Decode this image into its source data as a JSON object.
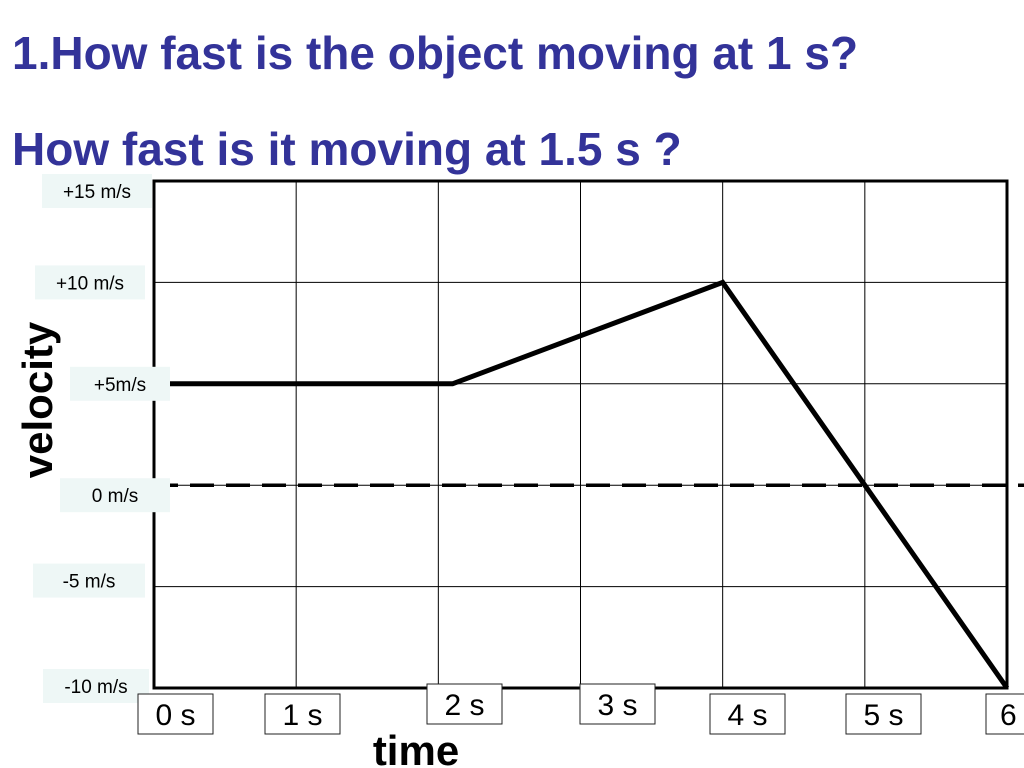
{
  "slide": {
    "question1": "1.How fast is the object moving at 1 s?",
    "question2": "How fast is it moving at 1.5 s ?",
    "title_color": "#333399"
  },
  "chart_data": {
    "type": "line",
    "xlabel": "time",
    "ylabel": "velocity",
    "x_tick_labels": [
      "0 s",
      "1 s",
      "2 s",
      "3 s",
      "4 s",
      "5 s",
      "6"
    ],
    "x_ticks": [
      0,
      1,
      2,
      3,
      4,
      5,
      6
    ],
    "y_tick_labels": [
      "+15 m/s",
      "+10 m/s",
      "+5m/s",
      "0 m/s",
      "-5 m/s",
      "-10 m/s"
    ],
    "y_ticks": [
      15,
      10,
      5,
      0,
      -5,
      -10
    ],
    "xlim": [
      0,
      6
    ],
    "ylim": [
      -10,
      15
    ],
    "grid": true,
    "reference_line": {
      "y": 0,
      "style": "dashed"
    },
    "series": [
      {
        "x": [
          0,
          2.1,
          4,
          6
        ],
        "y": [
          5,
          5,
          10,
          -10
        ]
      }
    ]
  }
}
